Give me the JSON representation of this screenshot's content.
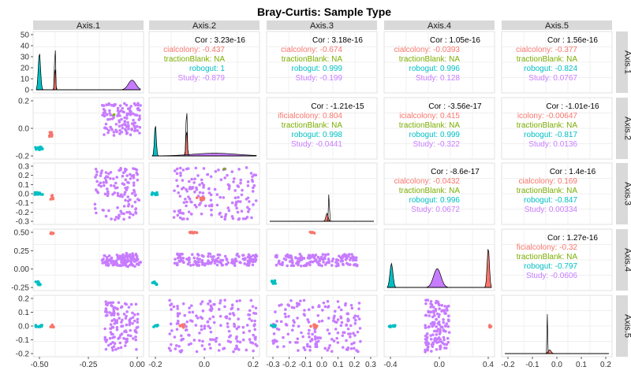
{
  "chart_data": {
    "type": "scatter",
    "title": "Bray-Curtis: Sample Type",
    "axes": [
      "Axis.1",
      "Axis.2",
      "Axis.3",
      "Axis.4",
      "Axis.5"
    ],
    "x_ticks": [
      [
        "-0.50",
        "-0.25",
        "0.00"
      ],
      [
        "-0.2",
        "0.0",
        "0.2"
      ],
      [
        "-0.3",
        "-0.2",
        "-0.1",
        "0.0",
        "0.1",
        "0.2",
        "0.3"
      ],
      [
        "-0.4",
        "0.0",
        "0.4"
      ],
      [
        "-0.2",
        "-0.1",
        "0.0",
        "0.1",
        "0.2"
      ]
    ],
    "y_ticks": [
      [
        "0",
        "10",
        "20",
        "30",
        "40",
        "50"
      ],
      [
        "-0.2",
        "0.0",
        "0.2"
      ],
      [
        "-0.3",
        "-0.2",
        "-0.1",
        "0.0",
        "0.1",
        "0.2",
        "0.3"
      ],
      [
        "-0.25",
        "0.00",
        "0.25",
        "0.50"
      ],
      [
        "-0.2",
        "-0.1",
        "0.0",
        "0.1",
        "0.2"
      ]
    ],
    "group_colors": {
      "artificialcolony": "#F8766D",
      "extractionBlank": "#7CAE00",
      "robogut": "#00BFC4",
      "Study": "#C77CFF"
    },
    "correlations": [
      {
        "row": 1,
        "col": 2,
        "overall": "Cor : 3.23e-16",
        "groups": [
          {
            "name": "artificialcolony",
            "label": "cialcolony: -0.437"
          },
          {
            "name": "extractionBlank",
            "label": "tractionBlank: NA"
          },
          {
            "name": "robogut",
            "label": "robogut: 1"
          },
          {
            "name": "Study",
            "label": "Study: -0.879"
          }
        ]
      },
      {
        "row": 1,
        "col": 3,
        "overall": "Cor : 3.18e-16",
        "groups": [
          {
            "name": "artificialcolony",
            "label": "cialcolony: -0.674"
          },
          {
            "name": "extractionBlank",
            "label": "tractionBlank: NA"
          },
          {
            "name": "robogut",
            "label": "robogut: 0.999"
          },
          {
            "name": "Study",
            "label": "Study: -0.199"
          }
        ]
      },
      {
        "row": 1,
        "col": 4,
        "overall": "Cor : 1.05e-16",
        "groups": [
          {
            "name": "artificialcolony",
            "label": "cialcolony: -0.0393"
          },
          {
            "name": "extractionBlank",
            "label": "tractionBlank: NA"
          },
          {
            "name": "robogut",
            "label": "robogut: 0.996"
          },
          {
            "name": "Study",
            "label": "Study: 0.128"
          }
        ]
      },
      {
        "row": 1,
        "col": 5,
        "overall": "Cor : 1.56e-16",
        "groups": [
          {
            "name": "artificialcolony",
            "label": "cialcolony: -0.377"
          },
          {
            "name": "extractionBlank",
            "label": "tractionBlank: NA"
          },
          {
            "name": "robogut",
            "label": "robogut: -0.824"
          },
          {
            "name": "Study",
            "label": "Study: 0.0767"
          }
        ]
      },
      {
        "row": 2,
        "col": 3,
        "overall": "Cor : -1.21e-15",
        "groups": [
          {
            "name": "artificialcolony",
            "label": "ificialcolony: 0.804"
          },
          {
            "name": "extractionBlank",
            "label": "tractionBlank: NA"
          },
          {
            "name": "robogut",
            "label": "robogut: 0.998"
          },
          {
            "name": "Study",
            "label": "Study: -0.0441"
          }
        ]
      },
      {
        "row": 2,
        "col": 4,
        "overall": "Cor : -3.56e-17",
        "groups": [
          {
            "name": "artificialcolony",
            "label": "icialcolony: 0.415"
          },
          {
            "name": "extractionBlank",
            "label": "tractionBlank: NA"
          },
          {
            "name": "robogut",
            "label": "robogut: 0.999"
          },
          {
            "name": "Study",
            "label": "Study: -0.322"
          }
        ]
      },
      {
        "row": 2,
        "col": 5,
        "overall": "Cor : -1.01e-16",
        "groups": [
          {
            "name": "artificialcolony",
            "label": "icolony: -0.00647"
          },
          {
            "name": "extractionBlank",
            "label": "tractionBlank: NA"
          },
          {
            "name": "robogut",
            "label": "robogut: -0.817"
          },
          {
            "name": "Study",
            "label": "Study: 0.0136"
          }
        ]
      },
      {
        "row": 3,
        "col": 4,
        "overall": "Cor : -8.6e-17",
        "groups": [
          {
            "name": "artificialcolony",
            "label": "cialcolony: -0.0432"
          },
          {
            "name": "extractionBlank",
            "label": "tractionBlank: NA"
          },
          {
            "name": "robogut",
            "label": "robogut: 0.996"
          },
          {
            "name": "Study",
            "label": "Study: 0.0672"
          }
        ]
      },
      {
        "row": 3,
        "col": 5,
        "overall": "Cor : 1.4e-16",
        "groups": [
          {
            "name": "artificialcolony",
            "label": "cialcolony: 0.169"
          },
          {
            "name": "extractionBlank",
            "label": "tractionBlank: NA"
          },
          {
            "name": "robogut",
            "label": "robogut: -0.847"
          },
          {
            "name": "Study",
            "label": "Study: 0.00334"
          }
        ]
      },
      {
        "row": 4,
        "col": 5,
        "overall": "Cor : 1.27e-16",
        "groups": [
          {
            "name": "artificialcolony",
            "label": "ficialcolony: -0.32"
          },
          {
            "name": "extractionBlank",
            "label": "tractionBlank: NA"
          },
          {
            "name": "robogut",
            "label": "robogut: -0.797"
          },
          {
            "name": "Study",
            "label": "Study: -0.0606"
          }
        ]
      }
    ],
    "grid": true
  }
}
